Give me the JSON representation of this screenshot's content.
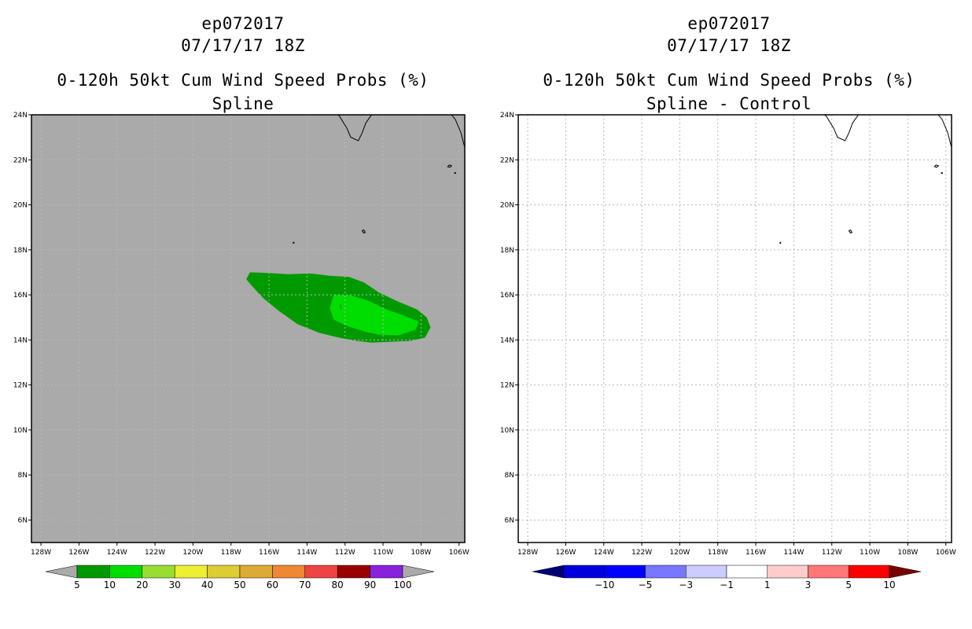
{
  "left": {
    "storm_id": "ep072017",
    "datetime": "07/17/17 18Z",
    "product": "0-120h 50kt Cum Wind Speed Probs (%)",
    "subtitle": "Spline",
    "background_color": "#aaaaaa",
    "colorbar": {
      "labels": [
        "5",
        "10",
        "20",
        "30",
        "40",
        "50",
        "60",
        "70",
        "80",
        "90",
        "100"
      ],
      "colors": [
        "#009900",
        "#00dd00",
        "#99dd33",
        "#eeee33",
        "#ddcc33",
        "#ddaa33",
        "#ee8833",
        "#ee4444",
        "#990000",
        "#8822dd"
      ],
      "end_low": "#aaaaaa",
      "end_high": "#aaaaaa"
    },
    "contours": [
      {
        "level": 5,
        "color": "#009900"
      },
      {
        "level": 10,
        "color": "#00dd00"
      }
    ]
  },
  "right": {
    "storm_id": "ep072017",
    "datetime": "07/17/17 18Z",
    "product": "0-120h 50kt Cum Wind Speed Probs (%)",
    "subtitle": "Spline - Control",
    "background_color": "#ffffff",
    "colorbar": {
      "labels": [
        "-10",
        "-5",
        "-3",
        "-1",
        "1",
        "3",
        "5",
        "10"
      ],
      "colors": [
        "#0000dd",
        "#0000ff",
        "#7777ff",
        "#ccccff",
        "#ffffff",
        "#ffcccc",
        "#ff7777",
        "#ff0000"
      ],
      "end_low": "#000077",
      "end_high": "#770000"
    }
  },
  "map": {
    "lon_range": [
      -128.5,
      -105.7
    ],
    "lat_range": [
      5,
      24
    ],
    "lon_ticks": [
      "128W",
      "126W",
      "124W",
      "122W",
      "120W",
      "118W",
      "116W",
      "114W",
      "112W",
      "110W",
      "108W",
      "106W"
    ],
    "lon_values": [
      -128,
      -126,
      -124,
      -122,
      -120,
      -118,
      -116,
      -114,
      -112,
      -110,
      -108,
      -106
    ],
    "lat_ticks": [
      "6N",
      "8N",
      "10N",
      "12N",
      "14N",
      "16N",
      "18N",
      "20N",
      "22N",
      "24N"
    ],
    "lat_values": [
      6,
      8,
      10,
      12,
      14,
      16,
      18,
      20,
      22,
      24
    ]
  }
}
